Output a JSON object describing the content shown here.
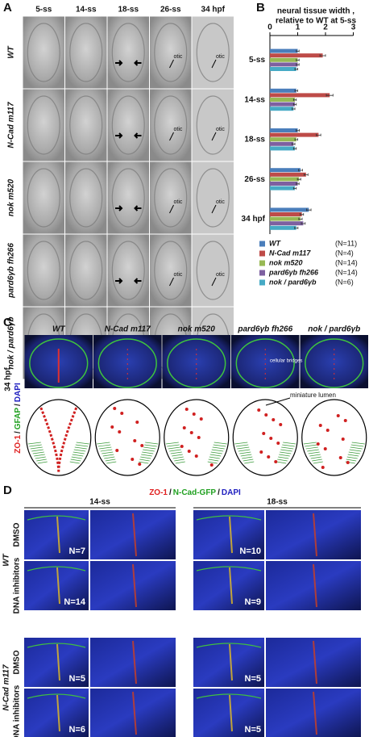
{
  "panel_a": {
    "label": "A",
    "columns": [
      "5-ss",
      "14-ss",
      "18-ss",
      "26-ss",
      "34 hpf"
    ],
    "rows": [
      "WT",
      "N-Cad m117",
      "nok m520",
      "pard6γb fh266",
      "nok / pard6γb"
    ],
    "annotation": "otic"
  },
  "chart_data": {
    "panel_label": "B",
    "type": "bar",
    "orientation": "horizontal",
    "title": "neural tissue width ,",
    "subtitle": "relative to WT at 5-ss",
    "categories": [
      "5-ss",
      "14-ss",
      "18-ss",
      "26-ss",
      "34 hpf"
    ],
    "series": [
      {
        "name": "WT",
        "color": "#4a7ebb",
        "values": [
          1.0,
          0.95,
          1.0,
          1.1,
          1.4
        ],
        "errors": [
          0.05,
          0.05,
          0.06,
          0.07,
          0.08
        ],
        "n_label": "(N=11)"
      },
      {
        "name": "N-Cad m117",
        "color": "#be4b48",
        "values": [
          1.9,
          2.15,
          1.75,
          1.3,
          1.15
        ],
        "errors": [
          0.1,
          0.12,
          0.08,
          0.07,
          0.06
        ],
        "n_label": "(N=4)"
      },
      {
        "name": "nok m520",
        "color": "#98b954",
        "values": [
          1.0,
          0.9,
          0.95,
          1.05,
          1.1
        ],
        "errors": [
          0.05,
          0.05,
          0.05,
          0.06,
          0.06
        ],
        "n_label": "(N=14)"
      },
      {
        "name": "pard6γb fh266",
        "color": "#7d60a0",
        "values": [
          1.0,
          0.9,
          0.85,
          1.0,
          1.2
        ],
        "errors": [
          0.05,
          0.05,
          0.05,
          0.05,
          0.07
        ],
        "n_label": "(N=14)"
      },
      {
        "name": "nok / pard6γb",
        "color": "#46aac5",
        "values": [
          0.95,
          0.85,
          0.9,
          0.9,
          0.95
        ],
        "errors": [
          0.05,
          0.05,
          0.05,
          0.05,
          0.06
        ],
        "n_label": "(N=6)"
      }
    ],
    "xlim": [
      0,
      3
    ],
    "xticks": [
      0,
      1,
      2,
      3
    ]
  },
  "panel_c": {
    "label": "C",
    "columns": [
      "WT",
      "N-Cad m117",
      "nok m520",
      "pard6γb fh266",
      "nok / pard6γb"
    ],
    "stage": "34 hpf",
    "stains": [
      "ZO-1",
      "GFAP",
      "DAPI"
    ],
    "separator": "/",
    "annotations": [
      "cellular bridges",
      "miniature lumen"
    ]
  },
  "panel_d": {
    "label": "D",
    "stains": [
      "ZO-1",
      "N-Cad-GFP",
      "DAPI"
    ],
    "separator": "/",
    "stages": [
      "14-ss",
      "18-ss"
    ],
    "genotypes": [
      {
        "name": "WT",
        "treatments": [
          {
            "name": "DMSO",
            "n": [
              "N=7",
              "N=10"
            ]
          },
          {
            "name": "DNA inhibitors",
            "n": [
              "N=14",
              "N=9"
            ]
          }
        ]
      },
      {
        "name": "N-Cad m117",
        "treatments": [
          {
            "name": "DMSO",
            "n": [
              "N=5",
              "N=5"
            ]
          },
          {
            "name": "DNA inhibitors",
            "n": [
              "N=6",
              "N=5"
            ]
          }
        ]
      }
    ]
  }
}
